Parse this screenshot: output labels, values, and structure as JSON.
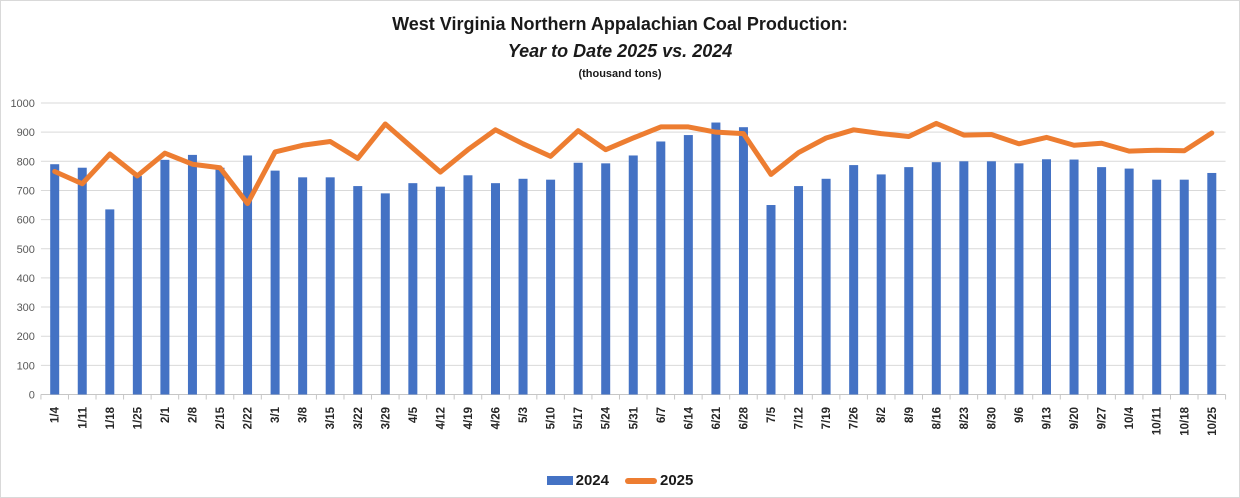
{
  "title": {
    "line1": "West Virginia Northern Appalachian Coal Production:",
    "line2": "Year to Date 2025 vs. 2024",
    "line3": "(thousand tons)"
  },
  "legend": {
    "items": [
      {
        "label": "2024",
        "shape": "rect",
        "color": "#4472C4"
      },
      {
        "label": "2025",
        "shape": "line",
        "color": "#ED7D31"
      }
    ]
  },
  "chart_data": {
    "type": "bar",
    "combo": "bar+line",
    "title": "West Virginia Northern Appalachian Coal Production: Year to Date 2025 vs. 2024 (thousand tons)",
    "xlabel": "",
    "ylabel": "",
    "ylim": [
      0,
      1000
    ],
    "ytick_step": 100,
    "grid": true,
    "legend_position": "bottom",
    "categories": [
      "1/4",
      "1/11",
      "1/18",
      "1/25",
      "2/1",
      "2/8",
      "2/15",
      "2/22",
      "3/1",
      "3/8",
      "3/15",
      "3/22",
      "3/29",
      "4/5",
      "4/12",
      "4/19",
      "4/26",
      "5/3",
      "5/10",
      "5/17",
      "5/24",
      "5/31",
      "6/7",
      "6/14",
      "6/21",
      "6/28",
      "7/5",
      "7/12",
      "7/19",
      "7/26",
      "8/2",
      "8/9",
      "8/16",
      "8/23",
      "8/30",
      "9/6",
      "9/13",
      "9/20",
      "9/27",
      "10/4",
      "10/11",
      "10/18",
      "10/25"
    ],
    "series": [
      {
        "name": "2024",
        "type": "bar",
        "color": "#4472C4",
        "values": [
          790,
          778,
          635,
          750,
          805,
          822,
          778,
          820,
          768,
          745,
          745,
          715,
          690,
          725,
          713,
          752,
          725,
          740,
          737,
          795,
          793,
          820,
          868,
          890,
          933,
          917,
          650,
          715,
          740,
          787,
          755,
          780,
          797,
          800,
          800,
          793,
          807,
          806,
          780,
          775,
          737,
          737,
          760
        ]
      },
      {
        "name": "2025",
        "type": "line",
        "color": "#ED7D31",
        "values": [
          765,
          723,
          825,
          750,
          828,
          790,
          778,
          655,
          832,
          855,
          868,
          810,
          928,
          845,
          763,
          840,
          908,
          860,
          817,
          905,
          840,
          880,
          918,
          918,
          900,
          895,
          755,
          830,
          880,
          908,
          895,
          885,
          930,
          890,
          892,
          860,
          882,
          855,
          862,
          835,
          838,
          836,
          897
        ]
      }
    ]
  },
  "axis": {
    "y_tick_labels": [
      "0",
      "100",
      "200",
      "300",
      "400",
      "500",
      "600",
      "700",
      "800",
      "900",
      "1000"
    ]
  },
  "colors": {
    "grid": "#d9d9d9",
    "axis_line": "#c6c6c6",
    "y_tick_text": "#595959",
    "x_tick_text": "#262626"
  }
}
